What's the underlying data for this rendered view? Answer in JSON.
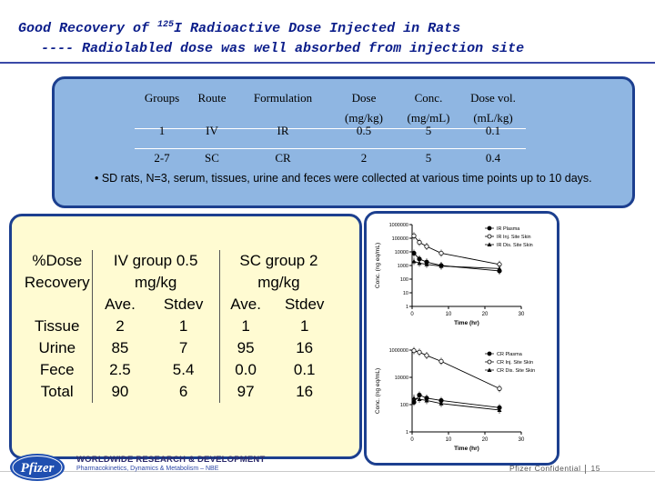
{
  "title": {
    "line1_prefix": "Good Recovery of ",
    "line1_sup": "125",
    "line1_suffix": "I Radioactive Dose Injected in Rats",
    "line2": "---- Radiolabled dose was well absorbed from injection site"
  },
  "study_table": {
    "headers": [
      "Groups",
      "Route",
      "Formulation",
      "Dose",
      "Conc.",
      "Dose vol."
    ],
    "units": [
      "",
      "",
      "",
      "(mg/kg)",
      "(mg/mL)",
      "(mL/kg)"
    ],
    "rows": [
      [
        "1",
        "IV",
        "IR",
        "0.5",
        "5",
        "0.1"
      ],
      [
        "2-7",
        "SC",
        "CR",
        "2",
        "5",
        "0.4"
      ]
    ],
    "note": "• SD rats, N=3, serum, tissues, urine and feces were collected at various time points up to 10 days."
  },
  "recovery_table": {
    "col_label": [
      "%Dose",
      "Recovery"
    ],
    "iv_header": [
      "IV group 0.5",
      "mg/kg"
    ],
    "sc_header": [
      "SC group 2",
      "mg/kg"
    ],
    "sub_headers": [
      "Ave.",
      "Stdev",
      "Ave.",
      "Stdev"
    ],
    "rows": [
      {
        "label": "Tissue",
        "values": [
          "2",
          "1",
          "1",
          "1"
        ]
      },
      {
        "label": "Urine",
        "values": [
          "85",
          "7",
          "95",
          "16"
        ]
      },
      {
        "label": "Fece",
        "values": [
          "2.5",
          "5.4",
          "0.0",
          "0.1"
        ]
      },
      {
        "label": "Total",
        "values": [
          "90",
          "6",
          "97",
          "16"
        ]
      }
    ]
  },
  "chart_data": [
    {
      "type": "line",
      "ylabel": "Conc. (ng eq/mL)",
      "xlabel": "Time (hr)",
      "yscale": "log",
      "ylim": [
        1,
        1000000
      ],
      "xlim": [
        0,
        30
      ],
      "yticks": [
        "1000000",
        "100000",
        "10000",
        "1000",
        "100",
        "10",
        "1"
      ],
      "xticks": [
        "0",
        "10",
        "20",
        "30"
      ],
      "legend": [
        "IR Plasma",
        "IR Inj. Site Skin",
        "IR Dis. Site Skin"
      ],
      "legend_position": "top-right",
      "series": [
        {
          "name": "IR Plasma",
          "x": [
            0.5,
            2,
            4,
            8,
            24
          ],
          "y": [
            8000,
            3000,
            1800,
            1000,
            400
          ]
        },
        {
          "name": "IR Inj. Site Skin",
          "x": [
            0.5,
            2,
            4,
            8,
            24
          ],
          "y": [
            150000,
            50000,
            25000,
            8000,
            1200
          ]
        },
        {
          "name": "IR Dis. Site Skin",
          "x": [
            0.5,
            2,
            4,
            8,
            24
          ],
          "y": [
            2000,
            1500,
            1200,
            900,
            600
          ]
        }
      ]
    },
    {
      "type": "line",
      "ylabel": "Conc. (ng eq/mL)",
      "xlabel": "Time (hr)",
      "yscale": "log",
      "ylim": [
        1,
        1000000
      ],
      "xlim": [
        0,
        30
      ],
      "yticks": [
        "1000000",
        "10000",
        "100",
        "1"
      ],
      "xticks": [
        "0",
        "10",
        "20",
        "30"
      ],
      "legend": [
        "CR Plasma",
        "CR Inj. Site Skin",
        "CR Dis. Site Skin"
      ],
      "legend_position": "top-right",
      "series": [
        {
          "name": "CR Plasma",
          "x": [
            0.5,
            2,
            4,
            8,
            24
          ],
          "y": [
            150,
            500,
            300,
            200,
            60
          ]
        },
        {
          "name": "CR Inj. Site Skin",
          "x": [
            0.5,
            2,
            4,
            8,
            24
          ],
          "y": [
            900000,
            700000,
            400000,
            150000,
            1500
          ]
        },
        {
          "name": "CR Dis. Site Skin",
          "x": [
            0.5,
            2,
            4,
            8,
            24
          ],
          "y": [
            300,
            250,
            200,
            120,
            40
          ]
        }
      ]
    }
  ],
  "footer": {
    "logo_text": "Pfizer",
    "org": "WORLDWIDE RESEARCH & DEVELOPMENT",
    "division": "Pharmacokinetics, Dynamics & Metabolism – NBE",
    "confidential": "Pfizer Confidential",
    "page": "15"
  },
  "colors": {
    "title": "#0b1d8a",
    "study_box": "#8fb6e2",
    "border": "#1c3f8f",
    "recovery_box": "#fffbd2"
  }
}
